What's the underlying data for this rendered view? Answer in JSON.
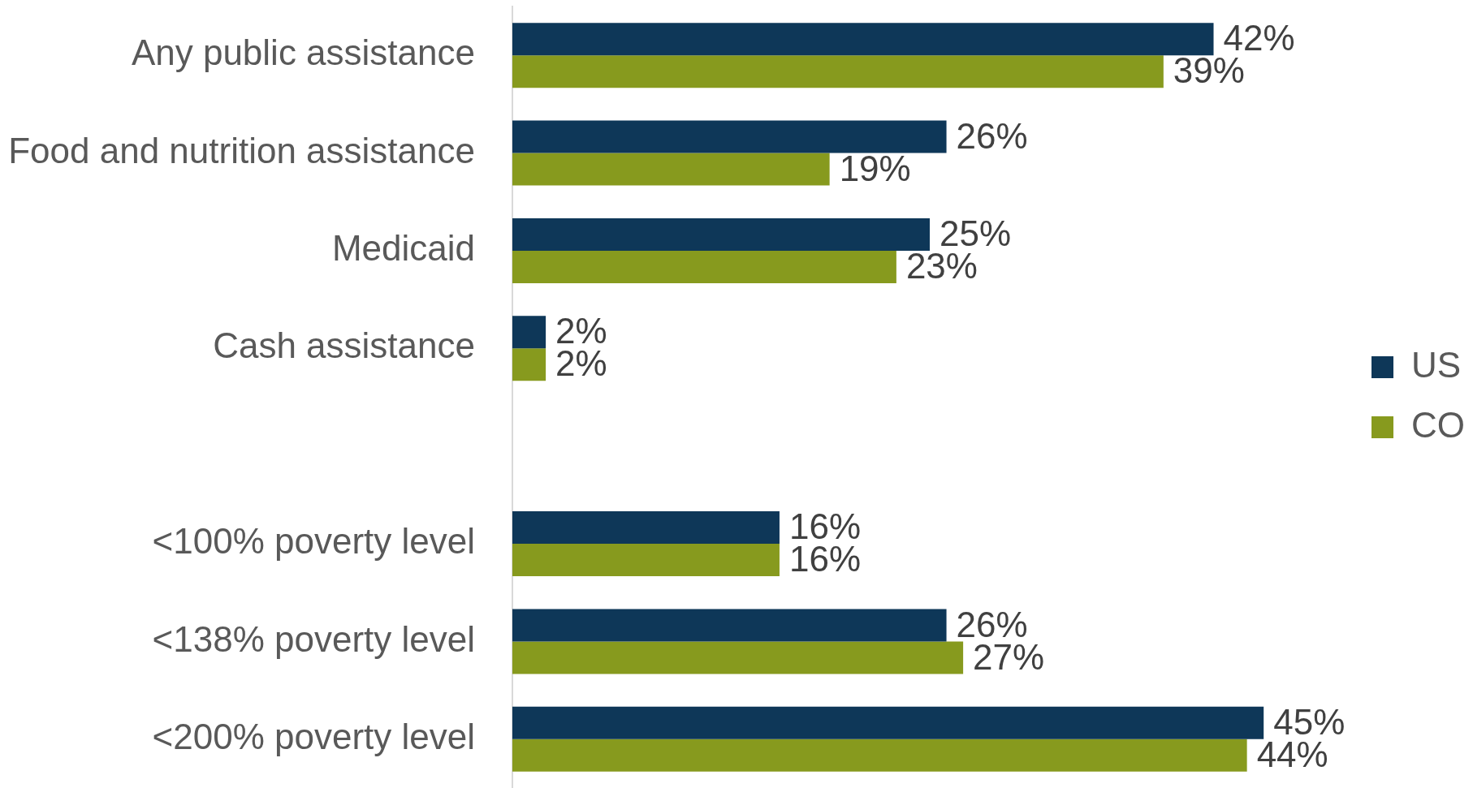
{
  "chart_data": {
    "type": "bar",
    "orientation": "horizontal",
    "categories": [
      "Any public assistance",
      "Food and nutrition assistance",
      "Medicaid",
      "Cash assistance",
      null,
      "<100% poverty level",
      "<138% poverty level",
      "<200% poverty level"
    ],
    "series": [
      {
        "name": "US",
        "color": "#0e3758",
        "values": [
          42,
          26,
          25,
          2,
          null,
          16,
          26,
          45
        ],
        "value_labels": [
          "42%",
          "26%",
          "25%",
          "2%",
          null,
          "16%",
          "26%",
          "45%"
        ]
      },
      {
        "name": "CO",
        "color": "#879a1e",
        "values": [
          39,
          19,
          23,
          2,
          null,
          16,
          27,
          44
        ],
        "value_labels": [
          "39%",
          "19%",
          "23%",
          "2%",
          null,
          "16%",
          "27%",
          "44%"
        ]
      }
    ],
    "tick_labels": "y",
    "legend": "right"
  }
}
